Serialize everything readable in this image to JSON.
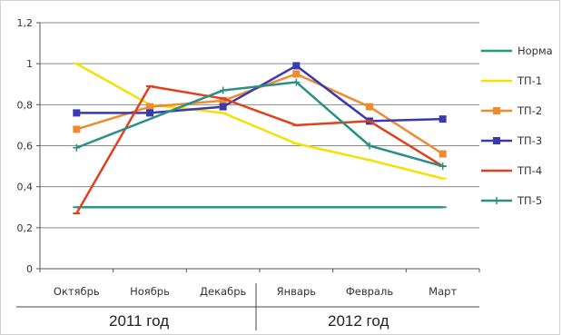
{
  "chart_data": {
    "type": "line",
    "categories": [
      "Октябрь",
      "Ноябрь",
      "Декабрь",
      "Январь",
      "Февраль",
      "Март"
    ],
    "groups": [
      {
        "label": "2011 год",
        "categories": [
          "Октябрь",
          "Ноябрь",
          "Декабрь"
        ]
      },
      {
        "label": "2012 год",
        "categories": [
          "Январь",
          "Февраль",
          "Март"
        ]
      }
    ],
    "y_ticks": [
      "0",
      "0,2",
      "0,4",
      "0,6",
      "0,8",
      "1",
      "1,2"
    ],
    "ylim": [
      0,
      1.2
    ],
    "grid": true,
    "legend_position": "right",
    "series": [
      {
        "name": "Норма",
        "color": "#20a070",
        "marker": "dash",
        "values": [
          0.3,
          0.3,
          0.3,
          0.3,
          0.3,
          0.3
        ]
      },
      {
        "name": "ТП-1",
        "color": "#f5e100",
        "marker": "dash",
        "values": [
          1.0,
          0.8,
          0.76,
          0.61,
          0.53,
          0.44
        ]
      },
      {
        "name": "ТП-2",
        "color": "#f08a30",
        "marker": "square",
        "values": [
          0.68,
          0.79,
          0.82,
          0.95,
          0.79,
          0.56
        ]
      },
      {
        "name": "ТП-3",
        "color": "#3a3ab0",
        "marker": "square",
        "values": [
          0.76,
          0.76,
          0.79,
          0.99,
          0.72,
          0.73
        ]
      },
      {
        "name": "ТП-4",
        "color": "#e2401c",
        "marker": "dash",
        "values": [
          0.27,
          0.89,
          0.83,
          0.7,
          0.72,
          0.5
        ]
      },
      {
        "name": "ТП-5",
        "color": "#2a8f85",
        "marker": "plus",
        "values": [
          0.59,
          null,
          0.87,
          0.91,
          0.6,
          0.5
        ]
      }
    ]
  }
}
